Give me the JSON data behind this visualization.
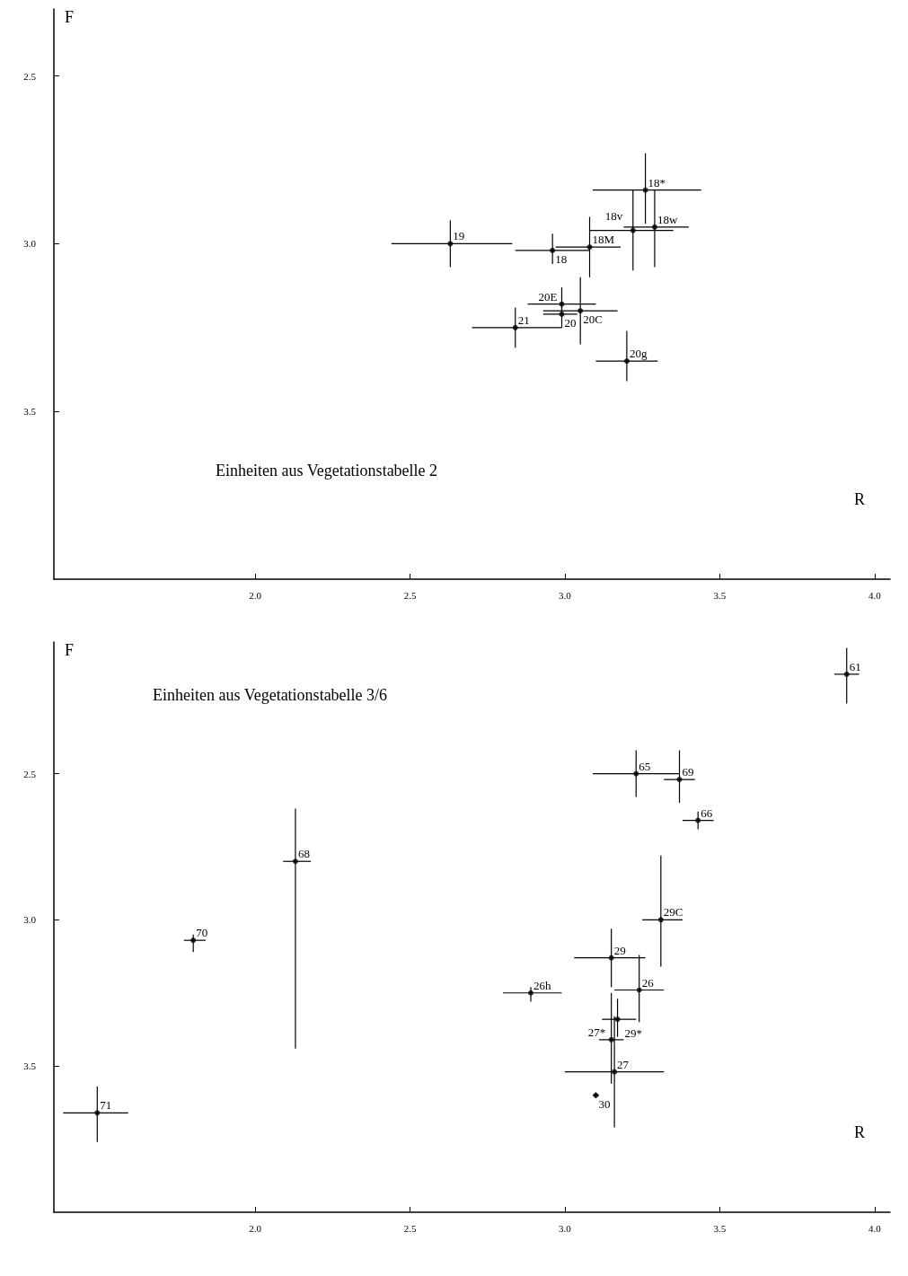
{
  "chart_data": [
    {
      "type": "scatter",
      "title": "Einheiten aus Vegetationstabelle 2",
      "xlabel": "R",
      "ylabel": "F",
      "xlim": [
        1.35,
        4.05
      ],
      "ylim": [
        4.0,
        2.3
      ],
      "xticks": [
        {
          "value": 2.0,
          "label": "2.0"
        },
        {
          "value": 2.5,
          "label": "2.5"
        },
        {
          "value": 3.0,
          "label": "3.0"
        },
        {
          "value": 3.5,
          "label": "3.5"
        },
        {
          "value": 4.0,
          "label": "4.0"
        }
      ],
      "yticks": [
        {
          "value": 2.5,
          "label": "2.5"
        },
        {
          "value": 3.0,
          "label": "3.0"
        },
        {
          "value": 3.5,
          "label": "3.5"
        }
      ],
      "grid": false,
      "marker": "circle",
      "series": [
        {
          "color": "#000000",
          "x": [
            2.63,
            2.96,
            3.08,
            3.22,
            3.29,
            3.26,
            2.99,
            3.05,
            2.99,
            2.84,
            3.2
          ],
          "values": [
            3.0,
            3.02,
            3.01,
            2.96,
            2.95,
            2.84,
            3.18,
            3.2,
            3.21,
            3.25,
            3.35
          ],
          "xerrors": [
            [
              2.44,
              2.83
            ],
            [
              2.84,
              3.08
            ],
            [
              2.97,
              3.18
            ],
            [
              3.08,
              3.35
            ],
            [
              3.19,
              3.4
            ],
            [
              3.09,
              3.44
            ],
            [
              2.88,
              3.1
            ],
            [
              2.93,
              3.17
            ],
            [
              2.93,
              3.04
            ],
            [
              2.7,
              2.99
            ],
            [
              3.1,
              3.3
            ]
          ],
          "errors": [
            [
              2.93,
              3.07
            ],
            [
              2.97,
              3.06
            ],
            [
              2.92,
              3.1
            ],
            [
              2.84,
              3.08
            ],
            [
              2.84,
              3.07
            ],
            [
              2.73,
              2.94
            ],
            [
              3.13,
              3.22
            ],
            [
              3.1,
              3.3
            ],
            [
              3.18,
              3.25
            ],
            [
              3.19,
              3.31
            ],
            [
              3.26,
              3.41
            ]
          ]
        }
      ],
      "annotations": [
        {
          "text": "19",
          "x": 2.63,
          "y": 3.0
        },
        {
          "text": "18",
          "x": 2.96,
          "y": 3.02
        },
        {
          "text": "18M",
          "x": 3.08,
          "y": 3.01
        },
        {
          "text": "18v",
          "x": 3.22,
          "y": 2.96
        },
        {
          "text": "18w",
          "x": 3.29,
          "y": 2.95
        },
        {
          "text": "18*",
          "x": 3.26,
          "y": 2.84
        },
        {
          "text": "20E",
          "x": 2.99,
          "y": 3.18
        },
        {
          "text": "20C",
          "x": 3.05,
          "y": 3.2
        },
        {
          "text": "20",
          "x": 2.99,
          "y": 3.21
        },
        {
          "text": "21",
          "x": 2.84,
          "y": 3.25
        },
        {
          "text": "20g",
          "x": 3.2,
          "y": 3.35
        }
      ]
    },
    {
      "type": "scatter",
      "title": "Einheiten aus Vegetationstabelle 3/6",
      "xlabel": "R",
      "ylabel": "F",
      "xlim": [
        1.35,
        4.05
      ],
      "ylim": [
        4.0,
        2.05
      ],
      "xticks": [
        {
          "value": 2.0,
          "label": "2.0"
        },
        {
          "value": 2.5,
          "label": "2.5"
        },
        {
          "value": 3.0,
          "label": "3.0"
        },
        {
          "value": 3.5,
          "label": "3.5"
        },
        {
          "value": 4.0,
          "label": "4.0"
        }
      ],
      "yticks": [
        {
          "value": 2.5,
          "label": "2.5"
        },
        {
          "value": 3.0,
          "label": "3.0"
        },
        {
          "value": 3.5,
          "label": "3.5"
        }
      ],
      "grid": false,
      "marker": "circle",
      "series": [
        {
          "color": "#000000",
          "x": [
            3.91,
            3.23,
            3.37,
            3.43,
            2.13,
            1.8,
            3.31,
            3.15,
            3.24,
            2.89,
            3.17,
            3.15,
            3.16,
            3.1,
            1.49
          ],
          "values": [
            2.16,
            2.5,
            2.52,
            2.66,
            2.8,
            3.07,
            3.0,
            3.13,
            3.24,
            3.25,
            3.34,
            3.41,
            3.52,
            3.6,
            3.66
          ],
          "xerrors": [
            [
              3.87,
              3.95
            ],
            [
              3.09,
              3.37
            ],
            [
              3.32,
              3.42
            ],
            [
              3.38,
              3.48
            ],
            [
              2.09,
              2.18
            ],
            [
              1.77,
              1.84
            ],
            [
              3.25,
              3.38
            ],
            [
              3.03,
              3.26
            ],
            [
              3.16,
              3.32
            ],
            [
              2.8,
              2.99
            ],
            [
              3.12,
              3.23
            ],
            [
              3.11,
              3.19
            ],
            [
              3.0,
              3.32
            ],
            [
              3.09,
              3.11
            ],
            [
              1.38,
              1.59
            ]
          ],
          "errors": [
            [
              2.07,
              2.26
            ],
            [
              2.42,
              2.58
            ],
            [
              2.42,
              2.6
            ],
            [
              2.63,
              2.69
            ],
            [
              2.62,
              3.44
            ],
            [
              3.05,
              3.11
            ],
            [
              2.78,
              3.16
            ],
            [
              3.03,
              3.23
            ],
            [
              3.12,
              3.35
            ],
            [
              3.23,
              3.28
            ],
            [
              3.27,
              3.4
            ],
            [
              3.25,
              3.56
            ],
            [
              3.33,
              3.71
            ],
            [
              3.59,
              3.61
            ],
            [
              3.57,
              3.76
            ]
          ]
        }
      ],
      "annotations": [
        {
          "text": "61",
          "x": 3.91,
          "y": 2.16
        },
        {
          "text": "65",
          "x": 3.23,
          "y": 2.5
        },
        {
          "text": "69",
          "x": 3.37,
          "y": 2.52
        },
        {
          "text": "66",
          "x": 3.43,
          "y": 2.66
        },
        {
          "text": "68",
          "x": 2.13,
          "y": 2.8
        },
        {
          "text": "70",
          "x": 1.8,
          "y": 3.07
        },
        {
          "text": "29C",
          "x": 3.31,
          "y": 3.0
        },
        {
          "text": "29",
          "x": 3.15,
          "y": 3.13
        },
        {
          "text": "26",
          "x": 3.24,
          "y": 3.24
        },
        {
          "text": "26h",
          "x": 2.89,
          "y": 3.25
        },
        {
          "text": "29*",
          "x": 3.17,
          "y": 3.34
        },
        {
          "text": "27*",
          "x": 3.15,
          "y": 3.41
        },
        {
          "text": "27",
          "x": 3.16,
          "y": 3.52
        },
        {
          "text": "30",
          "x": 3.1,
          "y": 3.6
        },
        {
          "text": "71",
          "x": 1.49,
          "y": 3.66
        }
      ]
    }
  ]
}
